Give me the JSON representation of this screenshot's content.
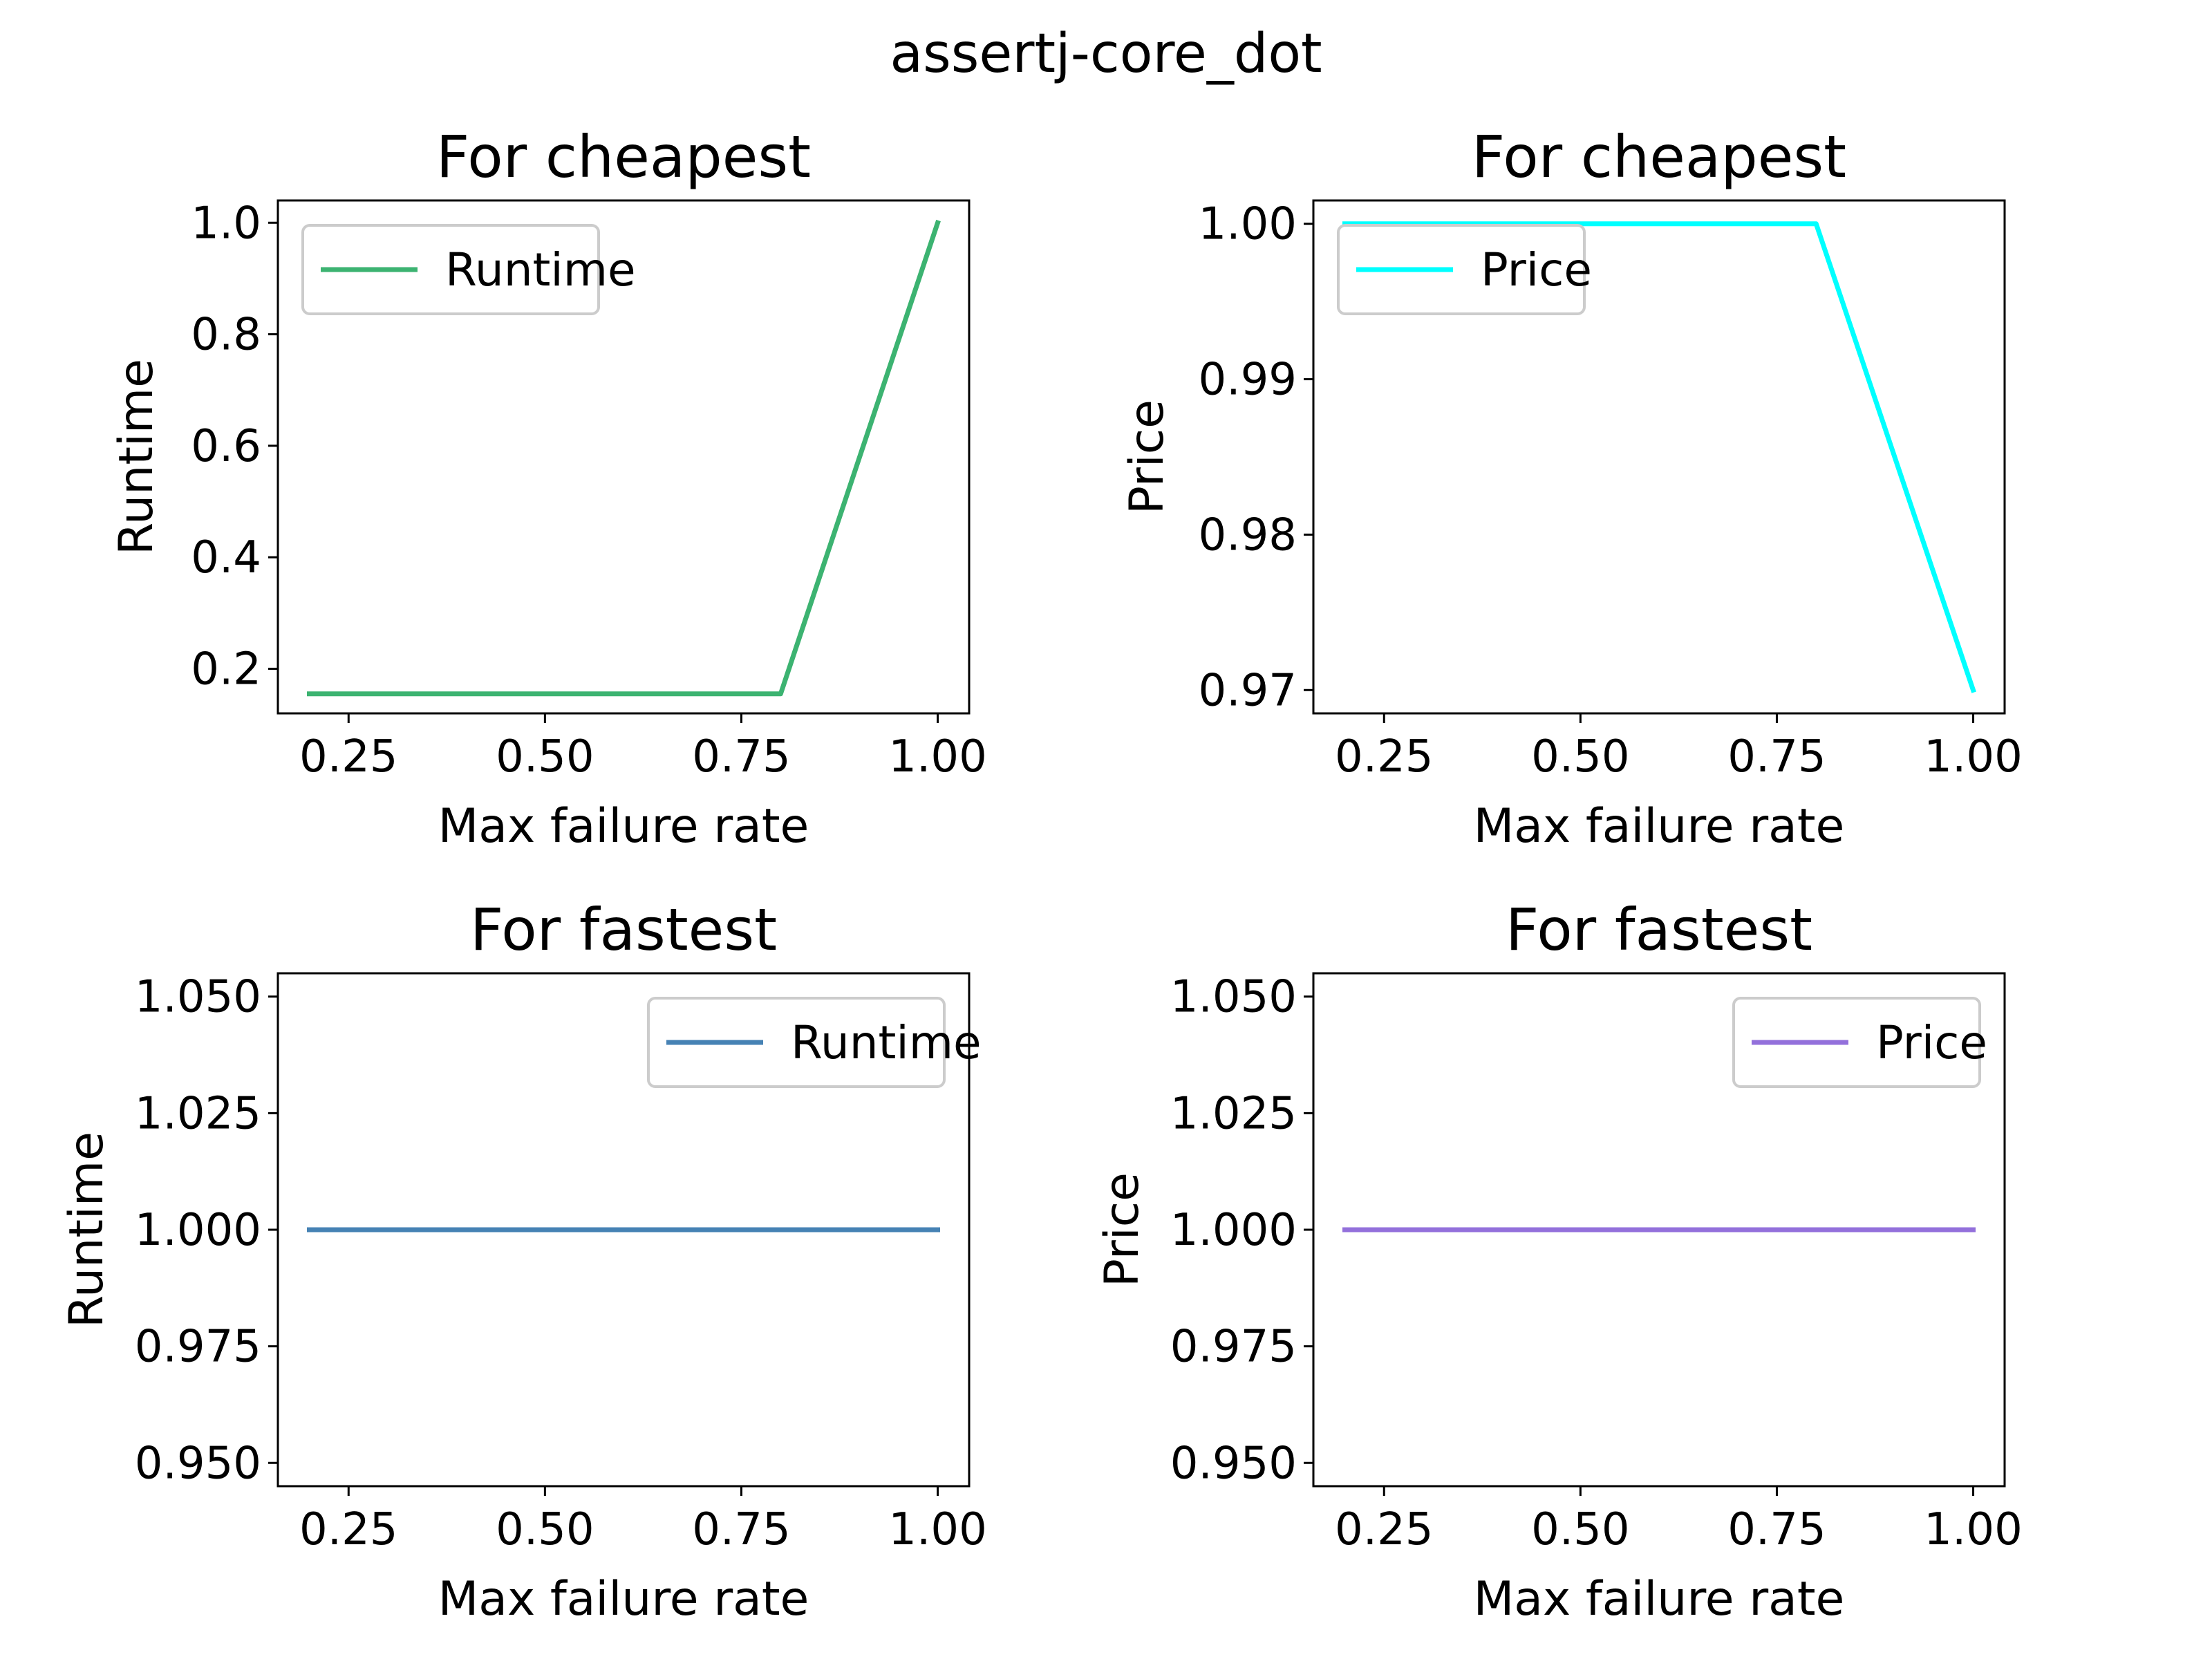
{
  "figure": {
    "suptitle": "assertj-core_dot"
  },
  "chart_data": [
    {
      "type": "line",
      "title": "For cheapest",
      "xlabel": "Max failure rate",
      "ylabel": "Runtime",
      "xlim": [
        0.16,
        1.04
      ],
      "ylim": [
        0.12,
        1.04
      ],
      "xticks": [
        0.25,
        0.5,
        0.75,
        1.0
      ],
      "xtick_labels": [
        "0.25",
        "0.50",
        "0.75",
        "1.00"
      ],
      "yticks": [
        0.2,
        0.4,
        0.6,
        0.8,
        1.0
      ],
      "ytick_labels": [
        "0.2",
        "0.4",
        "0.6",
        "0.8",
        "1.0"
      ],
      "legend_position": "upper-left",
      "series": [
        {
          "name": "Runtime",
          "color": "#3cb371",
          "x": [
            0.2,
            0.4,
            0.6,
            0.8,
            1.0
          ],
          "y": [
            0.155,
            0.155,
            0.155,
            0.155,
            1.0
          ]
        }
      ]
    },
    {
      "type": "line",
      "title": "For cheapest",
      "xlabel": "Max failure rate",
      "ylabel": "Price",
      "xlim": [
        0.16,
        1.04
      ],
      "ylim": [
        0.9685,
        1.0015
      ],
      "xticks": [
        0.25,
        0.5,
        0.75,
        1.0
      ],
      "xtick_labels": [
        "0.25",
        "0.50",
        "0.75",
        "1.00"
      ],
      "yticks": [
        0.97,
        0.98,
        0.99,
        1.0
      ],
      "ytick_labels": [
        "0.97",
        "0.98",
        "0.99",
        "1.00"
      ],
      "legend_position": "upper-left",
      "series": [
        {
          "name": "Price",
          "color": "#00ffff",
          "x": [
            0.2,
            0.4,
            0.6,
            0.8,
            1.0
          ],
          "y": [
            1.0,
            1.0,
            1.0,
            1.0,
            0.97
          ]
        }
      ]
    },
    {
      "type": "line",
      "title": "For fastest",
      "xlabel": "Max failure rate",
      "ylabel": "Runtime",
      "xlim": [
        0.16,
        1.04
      ],
      "ylim": [
        0.945,
        1.055
      ],
      "xticks": [
        0.25,
        0.5,
        0.75,
        1.0
      ],
      "xtick_labels": [
        "0.25",
        "0.50",
        "0.75",
        "1.00"
      ],
      "yticks": [
        0.95,
        0.975,
        1.0,
        1.025,
        1.05
      ],
      "ytick_labels": [
        "0.950",
        "0.975",
        "1.000",
        "1.025",
        "1.050"
      ],
      "legend_position": "upper-right",
      "series": [
        {
          "name": "Runtime",
          "color": "#4682b4",
          "x": [
            0.2,
            0.4,
            0.6,
            0.8,
            1.0
          ],
          "y": [
            1.0,
            1.0,
            1.0,
            1.0,
            1.0
          ]
        }
      ]
    },
    {
      "type": "line",
      "title": "For fastest",
      "xlabel": "Max failure rate",
      "ylabel": "Price",
      "xlim": [
        0.16,
        1.04
      ],
      "ylim": [
        0.945,
        1.055
      ],
      "xticks": [
        0.25,
        0.5,
        0.75,
        1.0
      ],
      "xtick_labels": [
        "0.25",
        "0.50",
        "0.75",
        "1.00"
      ],
      "yticks": [
        0.95,
        0.975,
        1.0,
        1.025,
        1.05
      ],
      "ytick_labels": [
        "0.950",
        "0.975",
        "1.000",
        "1.025",
        "1.050"
      ],
      "legend_position": "upper-right",
      "series": [
        {
          "name": "Price",
          "color": "#9370db",
          "x": [
            0.2,
            0.4,
            0.6,
            0.8,
            1.0
          ],
          "y": [
            1.0,
            1.0,
            1.0,
            1.0,
            1.0
          ]
        }
      ]
    }
  ]
}
